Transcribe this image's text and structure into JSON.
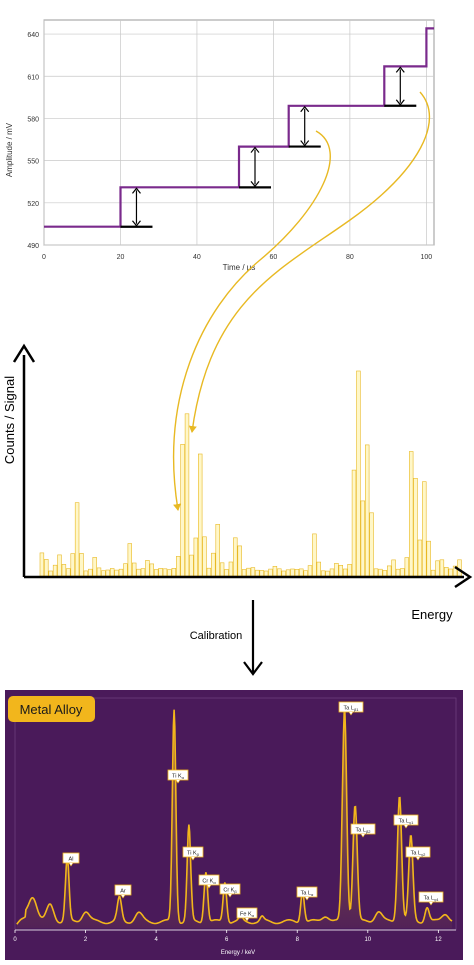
{
  "top_chart": {
    "ylabel": "Amplitude / mV",
    "xlabel": "Time / µs",
    "y_ticks": [
      "640",
      "610",
      "580",
      "550",
      "520",
      "490"
    ],
    "x_ticks": [
      "0",
      "20",
      "40",
      "60",
      "80",
      "100"
    ]
  },
  "histogram": {
    "ylabel": "Counts / Signal",
    "xlabel": "Energy"
  },
  "calibration_label": "Calibration",
  "spectrum": {
    "title": "Metal Alloy",
    "xlabel": "Energy / keV",
    "x_ticks": [
      "0",
      "2",
      "4",
      "6",
      "8",
      "10",
      "12"
    ],
    "peak_labels": [
      {
        "text": "Al"
      },
      {
        "text": "Ar"
      },
      {
        "text": "Ti K",
        "sub": "α"
      },
      {
        "text": "Ti K",
        "sub": "β"
      },
      {
        "text": "Cr K",
        "sub": "α"
      },
      {
        "text": "Cr K",
        "sub": "β"
      },
      {
        "text": "Fe K",
        "sub": "α"
      },
      {
        "text": "Ta L",
        "sub": "α"
      },
      {
        "text": "Ta L",
        "sub": "β1"
      },
      {
        "text": "Ta L",
        "sub": "β2"
      },
      {
        "text": "Ta L",
        "sub": "γ1"
      },
      {
        "text": "Ta L",
        "sub": "γ2"
      },
      {
        "text": "Ta L",
        "sub": "γ4"
      }
    ]
  },
  "colors": {
    "step_line": "#7a2a8c",
    "gold": "#e8b923",
    "gold_fill": "#fff7c8",
    "panel_bg": "#4a1a5a",
    "badge_bg": "#f2b61c",
    "grid": "#c8c8c8"
  },
  "chart_data": [
    {
      "type": "line",
      "xlabel": "Time / µs",
      "ylabel": "Amplitude / mV",
      "xlim": [
        0,
        102
      ],
      "ylim": [
        490,
        650
      ],
      "series": [
        {
          "x": [
            0,
            20,
            20,
            51,
            51,
            64,
            64,
            89,
            89,
            100,
            100,
            102
          ],
          "values": [
            503,
            503,
            531,
            531,
            560,
            560,
            589,
            589,
            617,
            617,
            644,
            644
          ]
        }
      ]
    },
    {
      "type": "line",
      "xlabel": "Energy / keV",
      "xlim": [
        0,
        12.5
      ],
      "series": [
        {
          "x": [
            0.2,
            0.5,
            1.0,
            1.48,
            2.0,
            2.96,
            3.5,
            4.51,
            4.93,
            5.41,
            5.95,
            6.4,
            7.0,
            8.15,
            8.8,
            9.34,
            9.64,
            10.3,
            10.9,
            11.22,
            11.68,
            12.2
          ],
          "values": [
            3,
            12,
            8,
            30,
            5,
            11,
            4,
            100,
            45,
            24,
            19,
            2,
            2,
            15,
            3,
            100,
            55,
            5,
            60,
            40,
            7,
            4
          ]
        }
      ]
    }
  ]
}
